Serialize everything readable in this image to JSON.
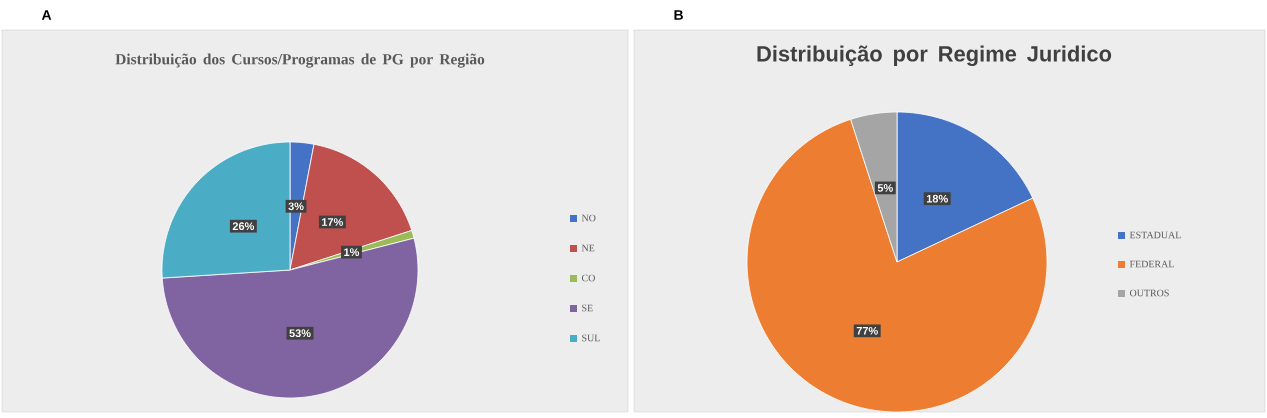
{
  "chart_data": [
    {
      "type": "pie",
      "title": "Distribuição dos Cursos/Programas de PG por Região",
      "annotations": [
        "A"
      ],
      "categories": [
        "NO",
        "NE",
        "CO",
        "SE",
        "SUL"
      ],
      "values": [
        3,
        17,
        1,
        53,
        26
      ],
      "value_labels": [
        "3%",
        "17%",
        "1%",
        "53%",
        "26%"
      ],
      "colors": [
        "#4472c4",
        "#c0504d",
        "#9bbb59",
        "#8064a2",
        "#4bacc6"
      ],
      "legend": "right"
    },
    {
      "type": "pie",
      "title": "Distribuição por Regime Juridico",
      "annotations": [
        "B"
      ],
      "categories": [
        "ESTADUAL",
        "FEDERAL",
        "OUTROS"
      ],
      "values": [
        18,
        77,
        5
      ],
      "value_labels": [
        "18%",
        "77%",
        "5%"
      ],
      "colors": [
        "#4472c4",
        "#ed7d31",
        "#a5a5a5"
      ],
      "legend": "right"
    }
  ]
}
